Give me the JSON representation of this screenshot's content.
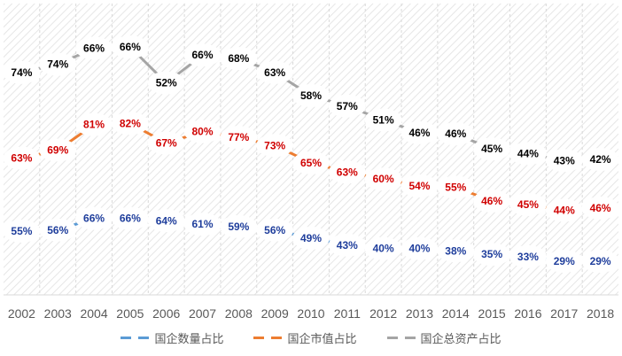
{
  "chart_data": {
    "type": "line",
    "stacked": true,
    "title": "",
    "xlabel": "",
    "ylabel": "",
    "categories": [
      "2002",
      "2003",
      "2004",
      "2005",
      "2006",
      "2007",
      "2008",
      "2009",
      "2010",
      "2011",
      "2012",
      "2013",
      "2014",
      "2015",
      "2016",
      "2017",
      "2018"
    ],
    "series": [
      {
        "name": "国企数量占比",
        "color": "#5B9BD5",
        "label_color": "#1F3E9C",
        "values": [
          55,
          56,
          66,
          66,
          64,
          61,
          59,
          56,
          49,
          43,
          40,
          40,
          38,
          35,
          33,
          29,
          29
        ]
      },
      {
        "name": "国企市值占比",
        "color": "#ED7D31",
        "label_color": "#D00000",
        "values": [
          63,
          69,
          81,
          82,
          67,
          80,
          77,
          73,
          65,
          63,
          60,
          54,
          55,
          46,
          45,
          44,
          46
        ]
      },
      {
        "name": "国企总资产占比",
        "color": "#A5A5A5",
        "label_color": "#000000",
        "values": [
          74,
          74,
          66,
          66,
          52,
          66,
          68,
          63,
          58,
          57,
          51,
          46,
          46,
          45,
          44,
          43,
          42
        ]
      }
    ],
    "value_suffix": "%",
    "ylim": [
      0,
      250
    ],
    "y_axis_visible": false,
    "grid": "vertical dashed",
    "background": "diagonal hatch",
    "legend_position": "bottom"
  }
}
